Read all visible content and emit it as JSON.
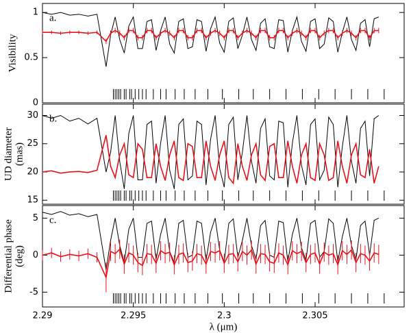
{
  "chart_data": [
    {
      "type": "line",
      "panel_label": "a.",
      "y_label": [
        "Visibility"
      ],
      "xlim": [
        2.29,
        2.3099
      ],
      "xticks": [
        2.29,
        2.295,
        2.3,
        2.305
      ],
      "ylim": [
        0,
        1.1
      ],
      "yticks": [
        0,
        0.5,
        1
      ],
      "x": [
        2.29,
        2.2905,
        2.291,
        2.2915,
        2.292,
        2.2925,
        2.293,
        2.2935,
        2.29375,
        2.294,
        2.29425,
        2.2945,
        2.29475,
        2.295,
        2.29525,
        2.2955,
        2.29575,
        2.296,
        2.29625,
        2.2965,
        2.29675,
        2.297,
        2.29725,
        2.2975,
        2.29775,
        2.298,
        2.29825,
        2.2985,
        2.29875,
        2.299,
        2.29925,
        2.2995,
        2.29975,
        2.3,
        2.30025,
        2.3005,
        2.30075,
        2.301,
        2.30125,
        2.3015,
        2.30175,
        2.302,
        2.30225,
        2.3025,
        2.30275,
        2.303,
        2.30325,
        2.3035,
        2.30375,
        2.304,
        2.30425,
        2.3045,
        2.30475,
        2.305,
        2.30525,
        2.3055,
        2.30575,
        2.306,
        2.30625,
        2.3065,
        2.30675,
        2.307,
        2.30725,
        2.3075,
        2.30775,
        2.308,
        2.30825,
        2.3085
      ],
      "series": [
        {
          "color": "#000000",
          "values": [
            1,
            0.98,
            1,
            0.97,
            0.98,
            0.96,
            0.98,
            0.4,
            0.75,
            0.95,
            0.7,
            0.55,
            0.85,
            0.95,
            0.6,
            0.6,
            0.9,
            0.92,
            0.58,
            0.8,
            0.95,
            0.65,
            0.55,
            0.9,
            0.93,
            0.6,
            0.62,
            0.92,
            0.9,
            0.57,
            0.82,
            0.95,
            0.66,
            0.56,
            0.9,
            0.94,
            0.6,
            0.75,
            0.95,
            0.7,
            0.58,
            0.88,
            0.93,
            0.62,
            0.6,
            0.92,
            0.91,
            0.56,
            0.8,
            0.95,
            0.68,
            0.57,
            0.9,
            0.93,
            0.6,
            0.65,
            0.94,
            0.9,
            0.56,
            0.78,
            0.95,
            0.7,
            0.58,
            0.88,
            0.92,
            0.62,
            0.93,
            0.95
          ]
        },
        {
          "color": "#e8101a",
          "values": [
            0.78,
            0.78,
            0.77,
            0.78,
            0.78,
            0.77,
            0.78,
            0.68,
            0.77,
            0.8,
            0.77,
            0.72,
            0.8,
            0.8,
            0.72,
            0.72,
            0.8,
            0.8,
            0.72,
            0.77,
            0.8,
            0.77,
            0.72,
            0.8,
            0.8,
            0.72,
            0.72,
            0.8,
            0.8,
            0.72,
            0.77,
            0.8,
            0.77,
            0.72,
            0.8,
            0.8,
            0.72,
            0.77,
            0.8,
            0.77,
            0.72,
            0.8,
            0.8,
            0.72,
            0.72,
            0.8,
            0.8,
            0.72,
            0.77,
            0.8,
            0.77,
            0.72,
            0.8,
            0.8,
            0.72,
            0.77,
            0.8,
            0.8,
            0.72,
            0.77,
            0.8,
            0.77,
            0.72,
            0.8,
            0.8,
            0.72,
            0.8,
            0.8
          ],
          "errors": [
            0.02,
            0.02,
            0.02,
            0.02,
            0.02,
            0.02,
            0.02,
            0.03,
            0.03,
            0.03,
            0.03,
            0.03,
            0.03,
            0.03,
            0.03,
            0.03,
            0.03,
            0.03,
            0.03,
            0.03,
            0.03,
            0.03,
            0.03,
            0.03,
            0.03,
            0.03,
            0.03,
            0.03,
            0.03,
            0.03,
            0.03,
            0.03,
            0.03,
            0.03,
            0.03,
            0.03,
            0.03,
            0.03,
            0.03,
            0.03,
            0.03,
            0.03,
            0.03,
            0.03,
            0.03,
            0.03,
            0.03,
            0.03,
            0.03,
            0.03,
            0.03,
            0.03,
            0.03,
            0.03,
            0.03,
            0.03,
            0.03,
            0.03,
            0.03,
            0.03,
            0.03,
            0.03,
            0.03,
            0.03,
            0.03,
            0.03,
            0.03,
            0.03
          ]
        }
      ],
      "line_positions": [
        2.2939,
        2.294,
        2.2941,
        2.2942,
        2.2943,
        2.2945,
        2.2946,
        2.2948,
        2.2949,
        2.2951,
        2.2953,
        2.2955,
        2.2957,
        2.2961,
        2.2965,
        2.2968,
        2.2973,
        2.2978,
        2.2984,
        2.2991,
        2.2999,
        2.3008,
        2.3016,
        2.3025,
        2.3034,
        2.3043,
        2.3052,
        2.3061,
        2.307,
        2.3079,
        2.3088
      ]
    },
    {
      "type": "line",
      "panel_label": "b.",
      "y_label": [
        "UD diameter",
        "(mas)"
      ],
      "xlim": [
        2.29,
        2.3099
      ],
      "xticks": [
        2.29,
        2.295,
        2.3,
        2.305
      ],
      "ylim": [
        14.3,
        32
      ],
      "yticks": [
        15,
        20,
        25,
        30
      ],
      "x": [
        2.29,
        2.2905,
        2.291,
        2.2915,
        2.292,
        2.2925,
        2.293,
        2.2935,
        2.29375,
        2.294,
        2.29425,
        2.2945,
        2.29475,
        2.295,
        2.29525,
        2.2955,
        2.29575,
        2.296,
        2.29625,
        2.2965,
        2.29675,
        2.297,
        2.29725,
        2.2975,
        2.29775,
        2.298,
        2.29825,
        2.2985,
        2.29875,
        2.299,
        2.29925,
        2.2995,
        2.29975,
        2.3,
        2.30025,
        2.3005,
        2.30075,
        2.301,
        2.30125,
        2.3015,
        2.30175,
        2.302,
        2.30225,
        2.3025,
        2.30275,
        2.303,
        2.30325,
        2.3035,
        2.30375,
        2.304,
        2.30425,
        2.3045,
        2.30475,
        2.305,
        2.30525,
        2.3055,
        2.30575,
        2.306,
        2.30625,
        2.3065,
        2.30675,
        2.307,
        2.30725,
        2.3075,
        2.30775,
        2.308,
        2.30825,
        2.3085
      ],
      "series": [
        {
          "color": "#000000",
          "values": [
            30,
            29.5,
            30,
            29,
            29.5,
            28.5,
            29.5,
            20,
            23.5,
            30,
            21.9,
            17,
            26.8,
            30,
            18.6,
            18.6,
            28.4,
            29,
            18,
            25.1,
            30,
            20.3,
            17,
            28.4,
            29.4,
            18.6,
            19.3,
            29,
            28.4,
            17.7,
            25.8,
            30,
            20.6,
            17.3,
            28.4,
            29.7,
            18.6,
            23.5,
            30,
            21.9,
            18,
            27.7,
            29.4,
            19.3,
            18.6,
            29,
            28.7,
            17.3,
            25.1,
            30,
            21.2,
            17.7,
            28.4,
            29.4,
            18.6,
            20.3,
            29.7,
            28.4,
            17.3,
            24.5,
            30,
            21.9,
            18,
            27.7,
            29,
            19.3,
            29.4,
            30
          ]
        },
        {
          "color": "#e8101a",
          "values": [
            20,
            20.2,
            19.8,
            20,
            20.1,
            19.9,
            20.3,
            26.5,
            21,
            19,
            23,
            25,
            19.5,
            19,
            25,
            24,
            19,
            19,
            25,
            21,
            18.5,
            23,
            25.5,
            19,
            18.5,
            25,
            24.5,
            19,
            19,
            25.5,
            21,
            18.5,
            23,
            25.5,
            19,
            18,
            25,
            21,
            18.5,
            23,
            25,
            19.5,
            18.5,
            24.5,
            25,
            19,
            19,
            25.5,
            21,
            18,
            23,
            25,
            19,
            18.5,
            25,
            23,
            18.5,
            19,
            25.5,
            21,
            18,
            23,
            25,
            19.5,
            19,
            24,
            18,
            21
          ]
        }
      ],
      "line_positions": [
        2.2939,
        2.294,
        2.2941,
        2.2942,
        2.2943,
        2.2945,
        2.2946,
        2.2948,
        2.2949,
        2.2951,
        2.2953,
        2.2955,
        2.2957,
        2.2961,
        2.2965,
        2.2968,
        2.2973,
        2.2978,
        2.2984,
        2.2991,
        2.2999,
        2.3008,
        2.3016,
        2.3025,
        2.3034,
        2.3043,
        2.3052,
        2.3061,
        2.307,
        2.3079,
        2.3088
      ]
    },
    {
      "type": "line",
      "panel_label": "c.",
      "y_label": [
        "Differential phase",
        "(deg)"
      ],
      "x_label": "λ (μm)",
      "xlim": [
        2.29,
        2.3099
      ],
      "xticks": [
        2.29,
        2.295,
        2.3,
        2.305
      ],
      "ylim": [
        -7,
        6.7
      ],
      "yticks": [
        -5,
        0,
        5
      ],
      "x": [
        2.29,
        2.2905,
        2.291,
        2.2915,
        2.292,
        2.2925,
        2.293,
        2.2935,
        2.29375,
        2.294,
        2.29425,
        2.2945,
        2.29475,
        2.295,
        2.29525,
        2.2955,
        2.29575,
        2.296,
        2.29625,
        2.2965,
        2.29675,
        2.297,
        2.29725,
        2.2975,
        2.29775,
        2.298,
        2.29825,
        2.2985,
        2.29875,
        2.299,
        2.29925,
        2.2995,
        2.29975,
        2.3,
        2.30025,
        2.3005,
        2.30075,
        2.301,
        2.30125,
        2.3015,
        2.30175,
        2.302,
        2.30225,
        2.3025,
        2.30275,
        2.303,
        2.30325,
        2.3035,
        2.30375,
        2.304,
        2.30425,
        2.3045,
        2.30475,
        2.305,
        2.30525,
        2.3055,
        2.30575,
        2.306,
        2.30625,
        2.3065,
        2.30675,
        2.307,
        2.30725,
        2.3075,
        2.30775,
        2.308,
        2.30825,
        2.3085
      ],
      "series": [
        {
          "color": "#000000",
          "values": [
            5.8,
            5.5,
            5.9,
            5.4,
            5.6,
            5.2,
            5.5,
            -2,
            2,
            5,
            1.3,
            -1,
            3.5,
            5,
            -0.3,
            -0.3,
            4.3,
            4.6,
            -0.6,
            2.8,
            5,
            0.5,
            -1,
            4.3,
            4.7,
            -0.3,
            0,
            4.6,
            4.3,
            -0.7,
            3.1,
            5,
            0.7,
            -0.9,
            4.3,
            4.9,
            -0.3,
            2,
            5,
            1.3,
            -0.6,
            4,
            4.7,
            0,
            -0.3,
            4.6,
            4.4,
            -0.9,
            2.8,
            5,
            1,
            -0.7,
            4.3,
            4.7,
            -0.3,
            0.5,
            4.9,
            4.3,
            -0.9,
            2.5,
            5,
            1.3,
            -0.6,
            4,
            4.6,
            0,
            4.7,
            5
          ]
        },
        {
          "color": "#e8101a",
          "values": [
            0,
            0.3,
            -0.2,
            0.1,
            -0.1,
            0.2,
            -0.3,
            -3,
            0.5,
            0.2,
            0.8,
            -1.2,
            0.3,
            0,
            -1,
            -1.4,
            0.2,
            0.1,
            -1.1,
            0.6,
            0.2,
            0.4,
            -1.3,
            0.1,
            0.3,
            -1,
            -0.8,
            0.2,
            0,
            -1.2,
            0.5,
            0.3,
            0.6,
            -1.1,
            0.1,
            0.2,
            -0.9,
            0.5,
            0,
            0.7,
            -1.2,
            0.2,
            0.1,
            -0.9,
            -1.1,
            0.3,
            0,
            -1.3,
            0.6,
            0.2,
            0.5,
            -1,
            0.1,
            0.3,
            -1.2,
            0.4,
            0,
            0.2,
            -1.3,
            0.6,
            0.1,
            0.7,
            -1,
            0.2,
            0,
            -0.8,
            0.3,
            0.1
          ],
          "errors": [
            0.7,
            0.7,
            0.7,
            0.7,
            0.7,
            0.7,
            0.7,
            2,
            1.3,
            1.3,
            1.3,
            1.3,
            1.3,
            1.3,
            1.3,
            1.3,
            1.3,
            1.3,
            1.3,
            1.3,
            1.3,
            1.3,
            1.3,
            1.3,
            1.3,
            1.3,
            1.3,
            1.3,
            1.3,
            1.3,
            1.3,
            1.3,
            1.3,
            1.3,
            1.3,
            1.3,
            1.3,
            1.3,
            1.3,
            1.3,
            1.3,
            1.3,
            1.3,
            1.3,
            1.3,
            1.3,
            1.3,
            1.3,
            1.3,
            1.3,
            1.3,
            1.3,
            1.3,
            1.3,
            1.3,
            1.3,
            1.3,
            1.3,
            1.3,
            1.3,
            1.3,
            1.3,
            1.3,
            1.3,
            1.3,
            1.3,
            1.3,
            1.3
          ]
        }
      ],
      "line_positions": [
        2.2939,
        2.294,
        2.2941,
        2.2942,
        2.2943,
        2.2945,
        2.2946,
        2.2948,
        2.2949,
        2.2951,
        2.2953,
        2.2955,
        2.2957,
        2.2961,
        2.2965,
        2.2968,
        2.2973,
        2.2978,
        2.2984,
        2.2991,
        2.2999,
        2.3008,
        2.3016,
        2.3025,
        2.3034,
        2.3043,
        2.3052,
        2.3061,
        2.307,
        2.3079,
        2.3088
      ]
    }
  ]
}
